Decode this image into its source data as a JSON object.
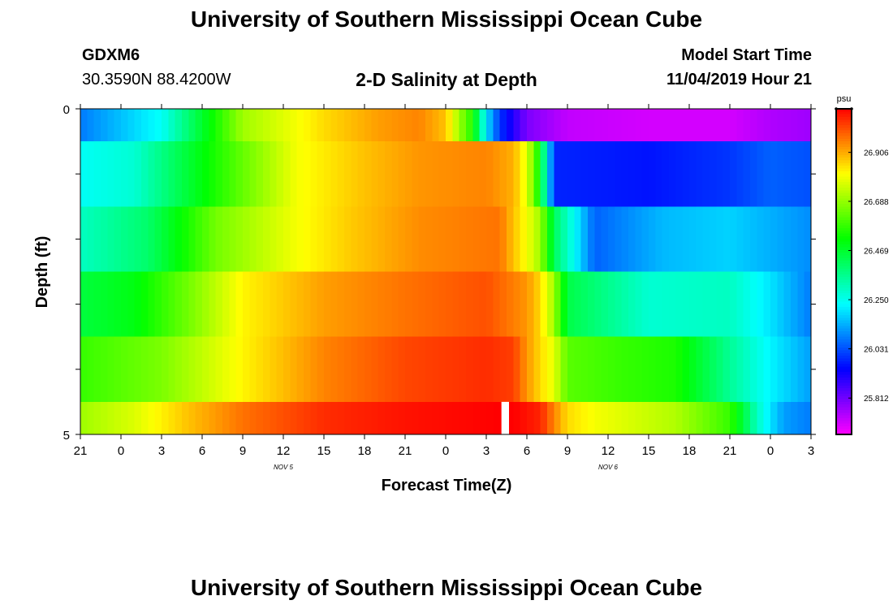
{
  "header": {
    "title": "University of Southern Mississippi Ocean Cube",
    "station_id": "GDXM6",
    "station_coords": "30.3590N 88.4200W",
    "plot_title": "2-D Salinity at Depth",
    "start_label": "Model Start Time",
    "start_value": "11/04/2019 Hour 21"
  },
  "footer": {
    "title": "University of Southern Mississippi Ocean Cube"
  },
  "chart_data": {
    "type": "heatmap",
    "title": "2-D Salinity at Depth",
    "xlabel": "Forecast Time(Z)",
    "ylabel": "Depth (ft)",
    "x_tick_labels": [
      "21",
      "0",
      "3",
      "6",
      "9",
      "12",
      "15",
      "18",
      "21",
      "0",
      "3",
      "6",
      "9",
      "12",
      "15",
      "18",
      "21",
      "0",
      "3"
    ],
    "x_hours": [
      0,
      3,
      6,
      9,
      12,
      15,
      18,
      21,
      24,
      27,
      30,
      33,
      36,
      39,
      42,
      45,
      48,
      51,
      54
    ],
    "date_labels": [
      {
        "text": "NOV 5",
        "hour": 15
      },
      {
        "text": "NOV 6",
        "hour": 39
      }
    ],
    "ylim": [
      0,
      5
    ],
    "y_tick_labels": [
      {
        "value": 0,
        "text": "0"
      },
      {
        "value": 5,
        "text": "5"
      }
    ],
    "y_minor_ticks": [
      0,
      1,
      2,
      3,
      4,
      5
    ],
    "colorbar": {
      "unit": "psu",
      "min": 25.65,
      "max": 27.1,
      "ticks": [
        "26.906",
        "26.688",
        "26.469",
        "26.250",
        "26.031",
        "25.812"
      ],
      "tick_values": [
        26.906,
        26.688,
        26.469,
        26.25,
        26.031,
        25.812
      ]
    },
    "rows": [
      {
        "depth_range": [
          0,
          0.5
        ],
        "hours": [
          0,
          6,
          12,
          18,
          22,
          25,
          27,
          28,
          29,
          30,
          31,
          33,
          36,
          42,
          48,
          51,
          54
        ],
        "values": [
          26.08,
          26.24,
          26.7,
          26.85,
          26.92,
          26.95,
          26.88,
          26.7,
          26.55,
          26.2,
          26.0,
          25.8,
          25.72,
          25.7,
          25.7,
          25.74,
          25.76
        ]
      },
      {
        "depth_range": [
          0.5,
          1.5
        ],
        "hours": [
          0,
          4,
          10,
          16,
          21,
          25,
          30,
          32,
          33,
          34,
          35,
          42,
          48,
          51,
          54
        ],
        "values": [
          26.24,
          26.28,
          26.55,
          26.8,
          26.88,
          26.93,
          26.95,
          26.9,
          26.78,
          26.5,
          25.98,
          25.96,
          26.0,
          26.05,
          26.03
        ]
      },
      {
        "depth_range": [
          1.5,
          2.5
        ],
        "hours": [
          0,
          5,
          10,
          16,
          20,
          25,
          31,
          32,
          33,
          34,
          35,
          38,
          43,
          48,
          54
        ],
        "values": [
          26.3,
          26.4,
          26.65,
          26.8,
          26.87,
          26.94,
          26.97,
          26.88,
          26.8,
          26.7,
          26.42,
          26.05,
          26.15,
          26.18,
          26.1
        ]
      },
      {
        "depth_range": [
          2.5,
          3.5
        ],
        "hours": [
          0,
          4,
          8,
          12,
          18,
          24,
          30,
          33,
          34,
          35,
          36,
          42,
          48,
          51,
          54
        ],
        "values": [
          26.45,
          26.5,
          26.65,
          26.82,
          26.92,
          26.97,
          27.01,
          26.93,
          26.85,
          26.7,
          26.44,
          26.28,
          26.3,
          26.2,
          26.08
        ]
      },
      {
        "depth_range": [
          3.5,
          4.5
        ],
        "hours": [
          0,
          6,
          12,
          18,
          24,
          30,
          32,
          33,
          34,
          35,
          36,
          40,
          44,
          48,
          51,
          54
        ],
        "values": [
          26.58,
          26.66,
          26.82,
          26.95,
          27.02,
          27.05,
          27.03,
          26.93,
          26.85,
          26.78,
          26.62,
          26.58,
          26.55,
          26.35,
          26.22,
          26.12
        ]
      },
      {
        "depth_range": [
          4.5,
          5
        ],
        "hours": [
          0,
          4,
          8,
          12,
          18,
          24,
          31,
          32,
          34,
          35,
          36,
          38,
          44,
          48,
          49,
          50,
          51,
          52,
          54
        ],
        "values": [
          26.7,
          26.77,
          26.88,
          26.97,
          27.05,
          27.08,
          27.1,
          27.1,
          27.06,
          26.95,
          26.85,
          26.8,
          26.72,
          26.58,
          26.45,
          26.3,
          26.2,
          26.12,
          26.08
        ]
      }
    ],
    "missing_column_hours": [
      31.0,
      31.5
    ],
    "missing_column_depth": [
      4.5,
      5
    ]
  }
}
